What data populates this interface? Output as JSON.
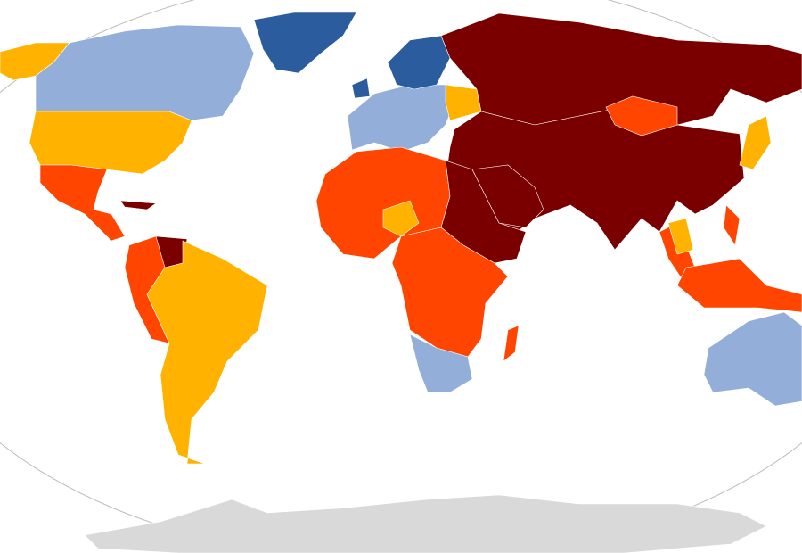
{
  "map": {
    "colors": [
      "#2a5c9e",
      "#93aed8",
      "#ffb300",
      "#ff4500",
      "#7a0000",
      "#d9d9d9"
    ],
    "border_color": "#ffffff"
  }
}
